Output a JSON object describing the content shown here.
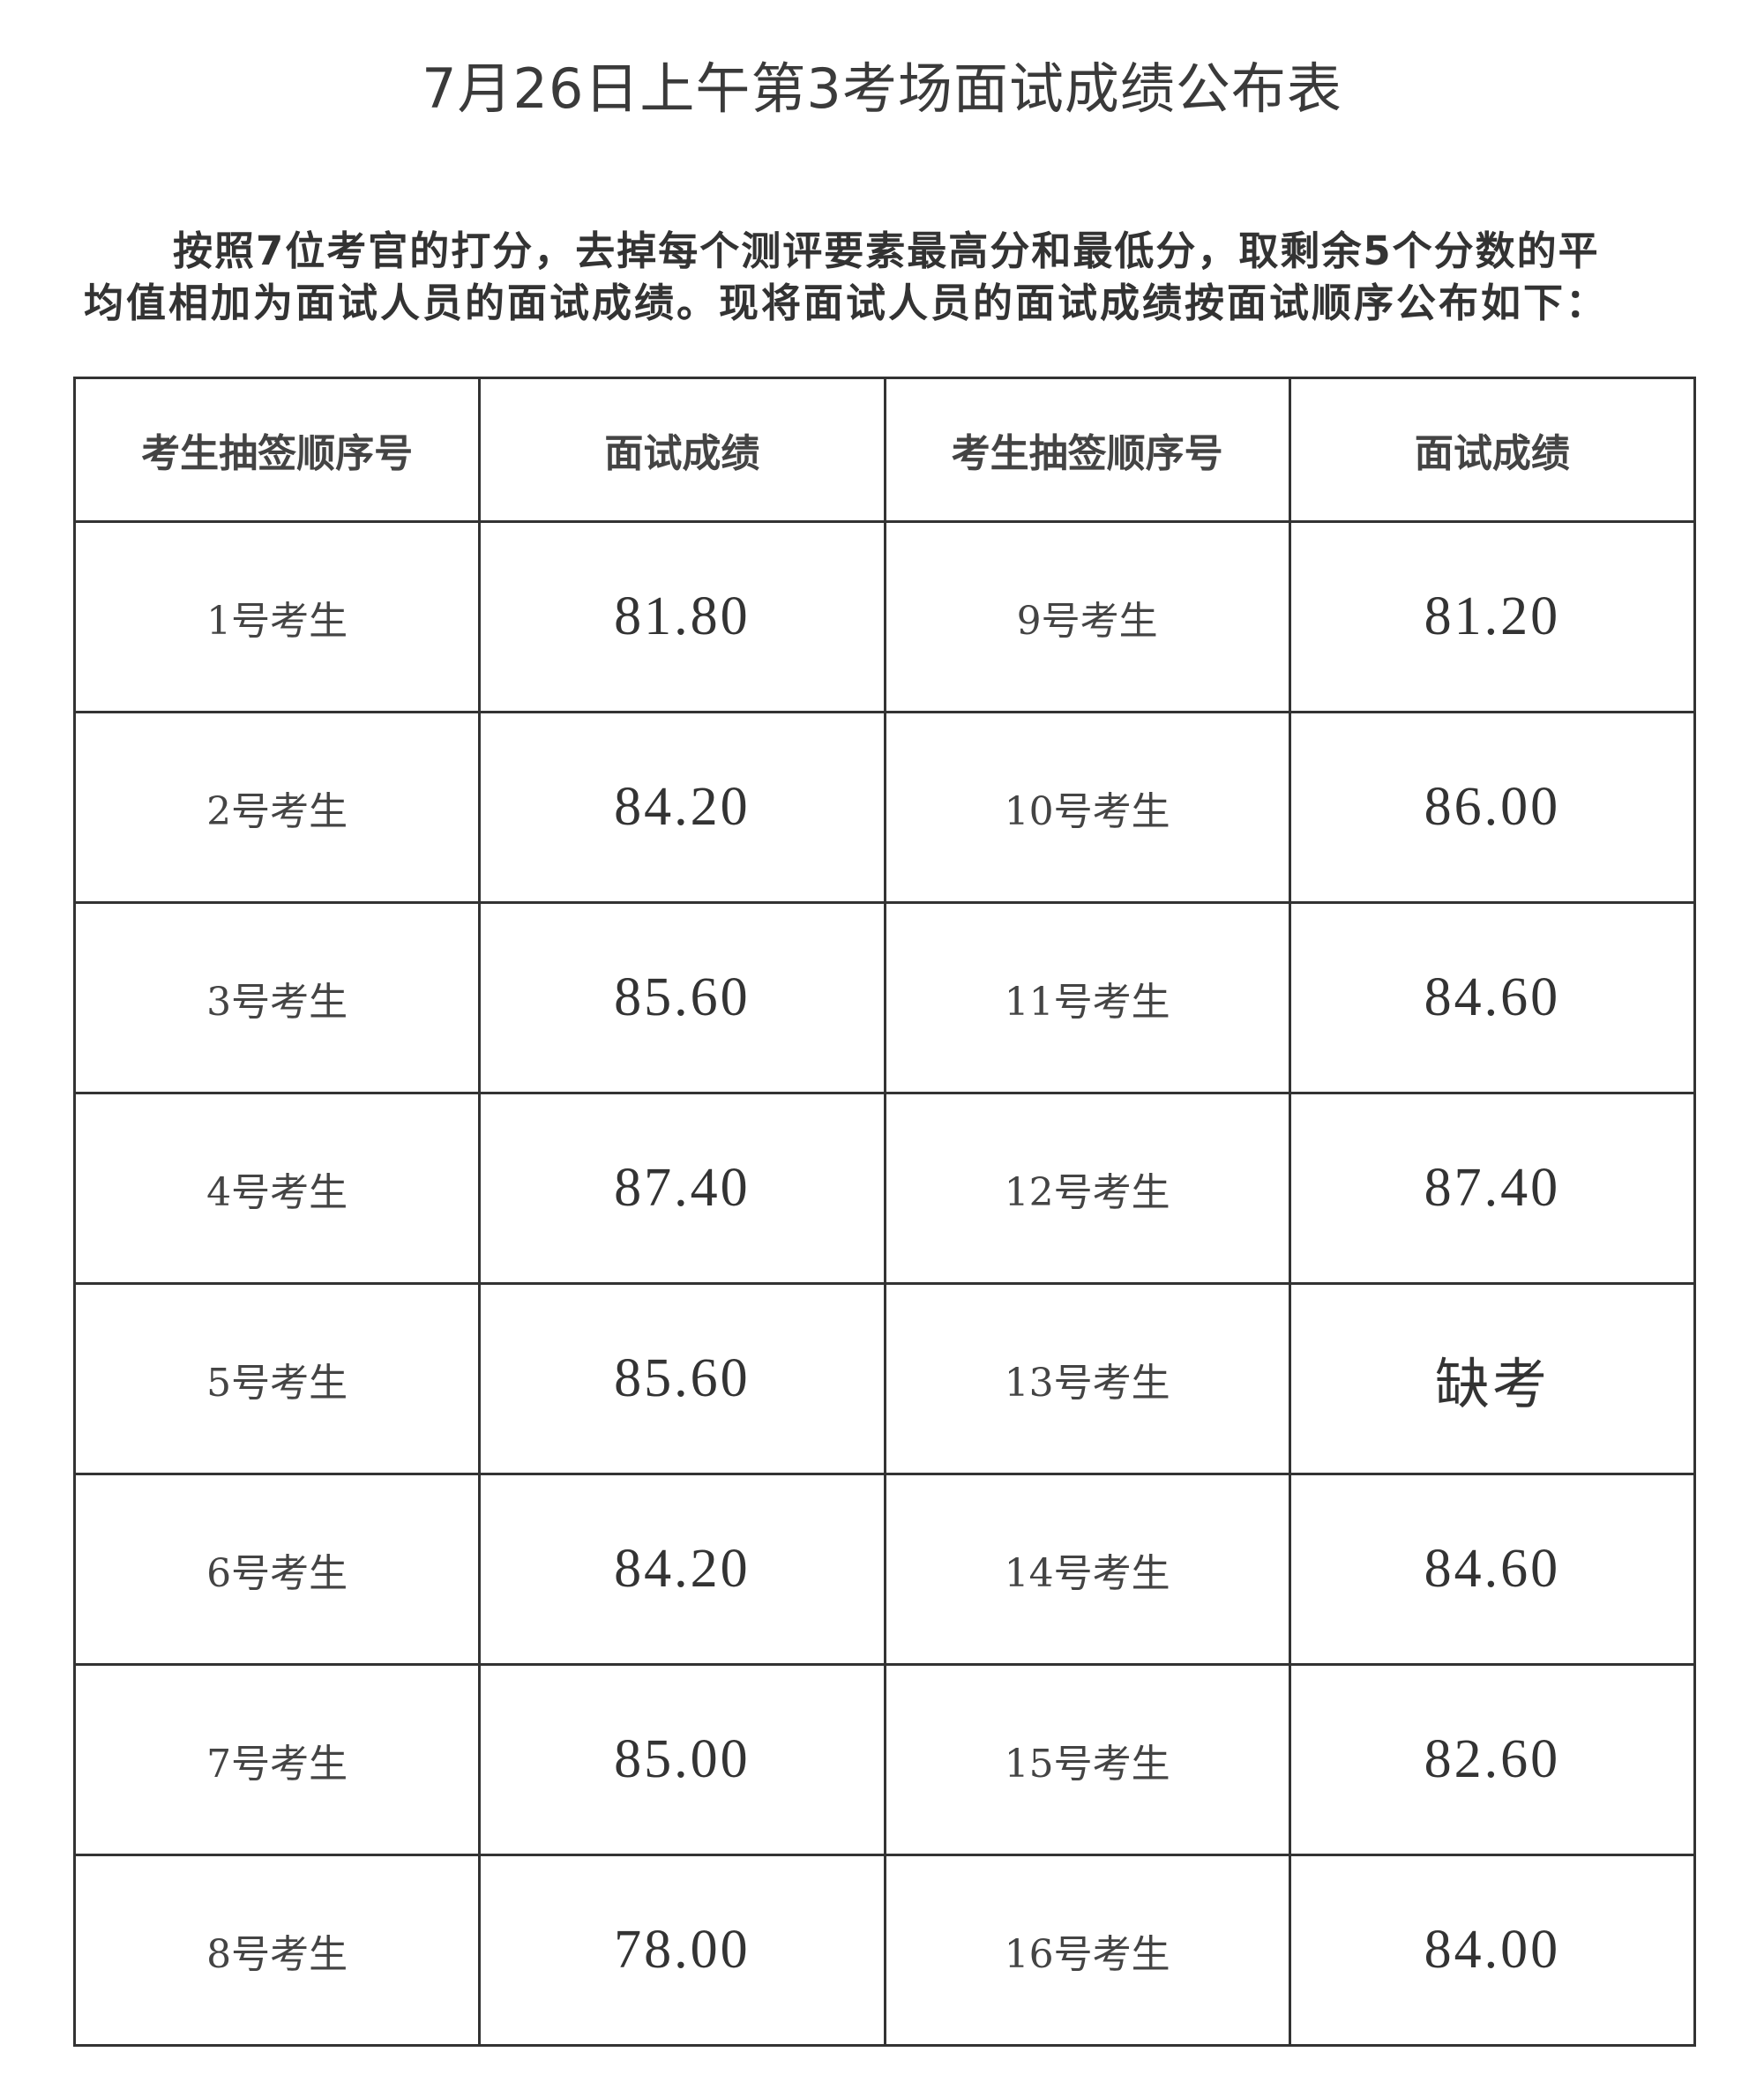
{
  "document": {
    "title": "7月26日上午第3考场面试成绩公布表",
    "intro_line1": "按照7位考官的打分，去掉每个测评要素最高分和最低分，取剩余5个分数的平",
    "intro_line2": "均值相加为面试人员的面试成绩。现将面试人员的面试成绩按面试顺序公布如下："
  },
  "table": {
    "headers": [
      "考生抽签顺序号",
      "面试成绩",
      "考生抽签顺序号",
      "面试成绩"
    ],
    "rows": [
      [
        "1号考生",
        "81.80",
        "9号考生",
        "81.20"
      ],
      [
        "2号考生",
        "84.20",
        "10号考生",
        "86.00"
      ],
      [
        "3号考生",
        "85.60",
        "11号考生",
        "84.60"
      ],
      [
        "4号考生",
        "87.40",
        "12号考生",
        "87.40"
      ],
      [
        "5号考生",
        "85.60",
        "13号考生",
        "缺考"
      ],
      [
        "6号考生",
        "84.20",
        "14号考生",
        "84.60"
      ],
      [
        "7号考生",
        "85.00",
        "15号考生",
        "82.60"
      ],
      [
        "8号考生",
        "78.00",
        "16号考生",
        "84.00"
      ]
    ]
  }
}
